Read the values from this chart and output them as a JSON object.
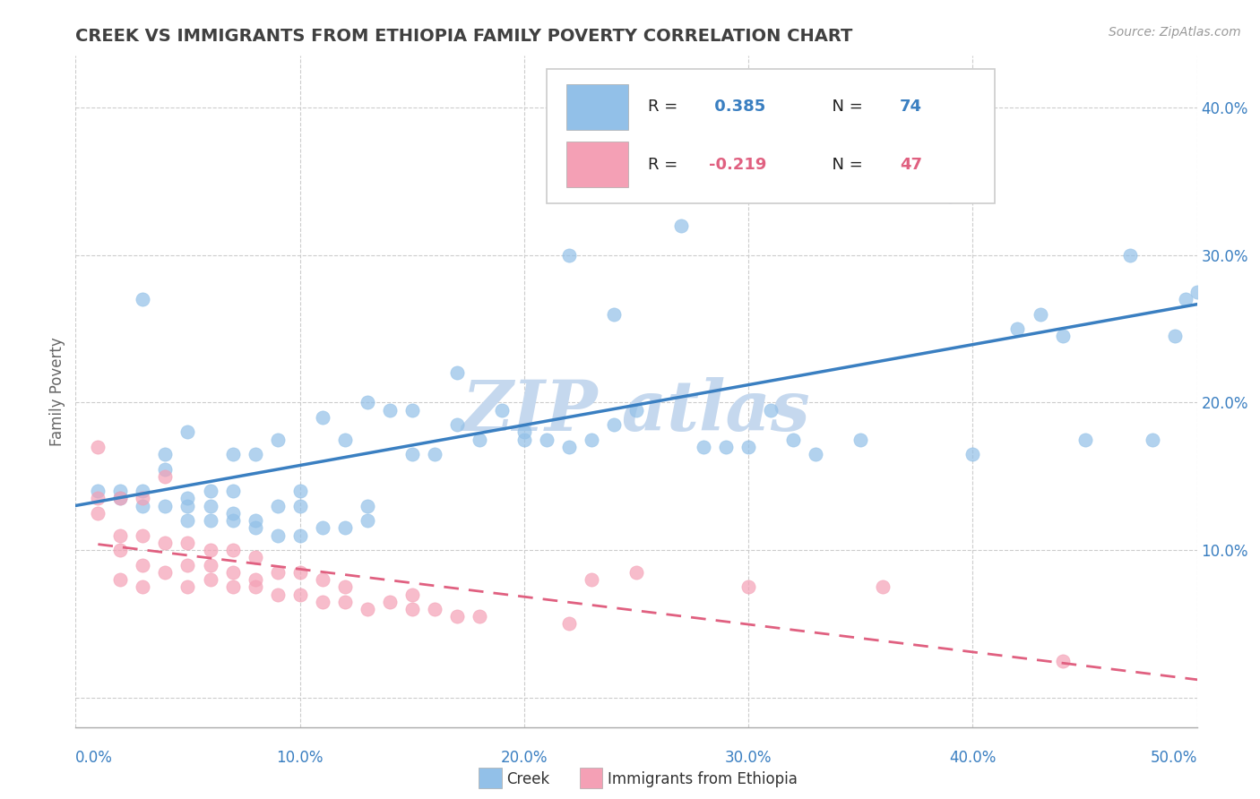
{
  "title": "CREEK VS IMMIGRANTS FROM ETHIOPIA FAMILY POVERTY CORRELATION CHART",
  "source": "Source: ZipAtlas.com",
  "ylabel": "Family Poverty",
  "xlim": [
    0.0,
    0.5
  ],
  "ylim": [
    -0.02,
    0.435
  ],
  "yticks": [
    0.0,
    0.1,
    0.2,
    0.3,
    0.4
  ],
  "ytick_labels": [
    "",
    "10.0%",
    "20.0%",
    "30.0%",
    "40.0%"
  ],
  "xticks": [
    0.0,
    0.1,
    0.2,
    0.3,
    0.4,
    0.5
  ],
  "xtick_labels": [
    "0.0%",
    "10.0%",
    "20.0%",
    "30.0%",
    "40.0%",
    "50.0%"
  ],
  "creek_R": 0.385,
  "creek_N": 74,
  "ethiopia_R": -0.219,
  "ethiopia_N": 47,
  "creek_color": "#92C0E8",
  "creek_line_color": "#3A7FC1",
  "ethiopia_color": "#F4A0B5",
  "ethiopia_line_color": "#E06080",
  "background_color": "#FFFFFF",
  "grid_color": "#CCCCCC",
  "title_color": "#404040",
  "watermark_color": "#C5D8EE",
  "creek_scatter_x": [
    0.01,
    0.02,
    0.02,
    0.03,
    0.03,
    0.03,
    0.04,
    0.04,
    0.04,
    0.05,
    0.05,
    0.05,
    0.05,
    0.06,
    0.06,
    0.06,
    0.07,
    0.07,
    0.07,
    0.07,
    0.08,
    0.08,
    0.08,
    0.09,
    0.09,
    0.09,
    0.1,
    0.1,
    0.1,
    0.11,
    0.11,
    0.12,
    0.12,
    0.13,
    0.13,
    0.13,
    0.14,
    0.15,
    0.15,
    0.16,
    0.17,
    0.17,
    0.18,
    0.19,
    0.2,
    0.2,
    0.21,
    0.22,
    0.22,
    0.23,
    0.24,
    0.24,
    0.25,
    0.26,
    0.27,
    0.28,
    0.29,
    0.3,
    0.31,
    0.32,
    0.33,
    0.35,
    0.38,
    0.39,
    0.4,
    0.42,
    0.43,
    0.44,
    0.45,
    0.47,
    0.48,
    0.49,
    0.495,
    0.5
  ],
  "creek_scatter_y": [
    0.14,
    0.14,
    0.135,
    0.13,
    0.14,
    0.27,
    0.13,
    0.155,
    0.165,
    0.12,
    0.13,
    0.135,
    0.18,
    0.12,
    0.13,
    0.14,
    0.12,
    0.125,
    0.14,
    0.165,
    0.115,
    0.12,
    0.165,
    0.11,
    0.13,
    0.175,
    0.11,
    0.13,
    0.14,
    0.115,
    0.19,
    0.115,
    0.175,
    0.12,
    0.13,
    0.2,
    0.195,
    0.165,
    0.195,
    0.165,
    0.185,
    0.22,
    0.175,
    0.195,
    0.175,
    0.18,
    0.175,
    0.17,
    0.3,
    0.175,
    0.185,
    0.26,
    0.195,
    0.36,
    0.32,
    0.17,
    0.17,
    0.17,
    0.195,
    0.175,
    0.165,
    0.175,
    0.38,
    0.34,
    0.165,
    0.25,
    0.26,
    0.245,
    0.175,
    0.3,
    0.175,
    0.245,
    0.27,
    0.275
  ],
  "ethiopia_scatter_x": [
    0.01,
    0.01,
    0.01,
    0.02,
    0.02,
    0.02,
    0.02,
    0.03,
    0.03,
    0.03,
    0.03,
    0.04,
    0.04,
    0.04,
    0.05,
    0.05,
    0.05,
    0.06,
    0.06,
    0.06,
    0.07,
    0.07,
    0.07,
    0.08,
    0.08,
    0.08,
    0.09,
    0.09,
    0.1,
    0.1,
    0.11,
    0.11,
    0.12,
    0.12,
    0.13,
    0.14,
    0.15,
    0.15,
    0.16,
    0.17,
    0.18,
    0.22,
    0.23,
    0.25,
    0.3,
    0.36,
    0.44
  ],
  "ethiopia_scatter_y": [
    0.125,
    0.135,
    0.17,
    0.08,
    0.1,
    0.11,
    0.135,
    0.075,
    0.09,
    0.11,
    0.135,
    0.085,
    0.105,
    0.15,
    0.075,
    0.09,
    0.105,
    0.08,
    0.09,
    0.1,
    0.075,
    0.085,
    0.1,
    0.075,
    0.08,
    0.095,
    0.07,
    0.085,
    0.07,
    0.085,
    0.065,
    0.08,
    0.065,
    0.075,
    0.06,
    0.065,
    0.06,
    0.07,
    0.06,
    0.055,
    0.055,
    0.05,
    0.08,
    0.085,
    0.075,
    0.075,
    0.025
  ]
}
